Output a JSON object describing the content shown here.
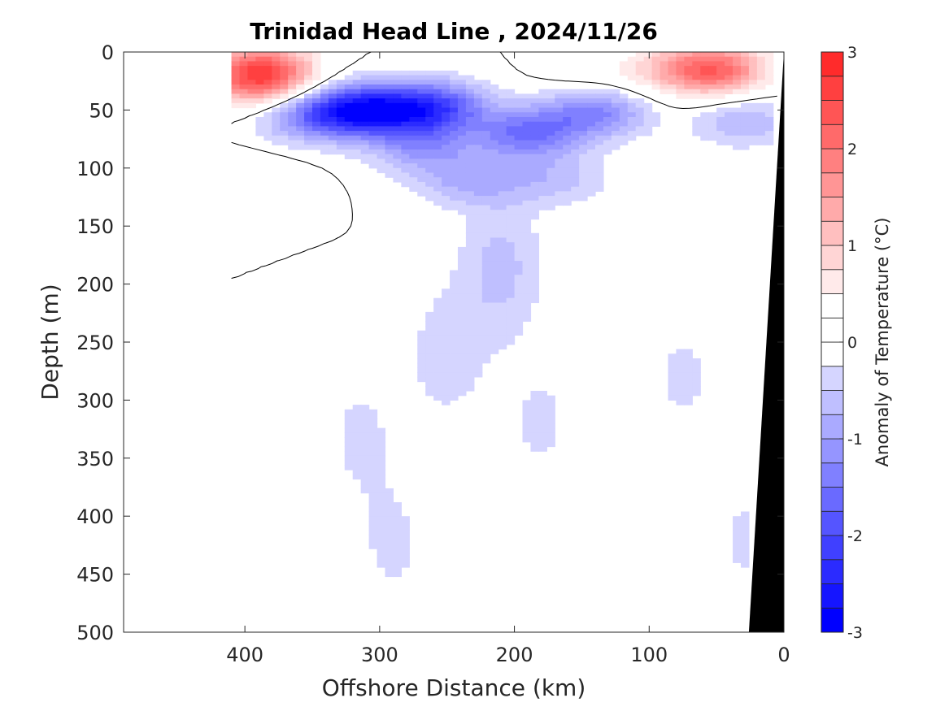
{
  "chart_data": {
    "type": "heatmap",
    "title": "Trinidad Head Line , 2024/11/26",
    "xlabel": "Offshore Distance (km)",
    "ylabel": "Depth (m)",
    "xlim": [
      490,
      0
    ],
    "ylim": [
      500,
      0
    ],
    "x_reversed": true,
    "y_reversed": true,
    "xticks": [
      400,
      300,
      200,
      100,
      0
    ],
    "yticks": [
      0,
      50,
      100,
      150,
      200,
      250,
      300,
      350,
      400,
      450,
      500
    ],
    "grid": false,
    "colorbar": {
      "label": "Anomaly of Temperature (°C)",
      "range": [
        -3,
        3
      ],
      "ticks": [
        3,
        2,
        1,
        0,
        -1,
        -2,
        -3
      ],
      "levels": [
        -3,
        -2.75,
        -2.5,
        -2.25,
        -2,
        -1.75,
        -1.5,
        -1.25,
        -1,
        -0.75,
        -0.5,
        -0.25,
        0,
        0.25,
        0.5,
        0.75,
        1,
        1.25,
        1.5,
        1.75,
        2,
        2.25,
        2.5,
        2.75,
        3
      ],
      "colors": [
        "#0000ff",
        "#1515ff",
        "#2b2bff",
        "#4040ff",
        "#5555ff",
        "#6a6aff",
        "#8080ff",
        "#9595ff",
        "#aaaaff",
        "#bfbfff",
        "#d5d5ff",
        "#eaeaff",
        "#ffffff",
        "#ffffff",
        "#ffeaea",
        "#ffd5d5",
        "#ffbfbf",
        "#ffaaaa",
        "#ff9595",
        "#ff8080",
        "#ff6a6a",
        "#ff5555",
        "#ff4040",
        "#ff2b2b",
        "#ff1515",
        "#ff0000"
      ]
    },
    "data_extent_x": [
      410,
      0
    ],
    "bathymetry_color": "#000000",
    "anomaly_features": [
      {
        "x": 390,
        "y": 25,
        "value": 1.9
      },
      {
        "x": 385,
        "y": 10,
        "value": 1.2
      },
      {
        "x": 395,
        "y": 110,
        "value": 0.3
      },
      {
        "x": 50,
        "y": 15,
        "value": 2.0
      },
      {
        "x": 85,
        "y": 15,
        "value": 0.7
      },
      {
        "x": 140,
        "y": 22,
        "value": 0.3
      },
      {
        "x": 310,
        "y": 50,
        "value": -2.4
      },
      {
        "x": 260,
        "y": 48,
        "value": -2.0
      },
      {
        "x": 350,
        "y": 55,
        "value": -1.3
      },
      {
        "x": 270,
        "y": 80,
        "value": -1.0
      },
      {
        "x": 190,
        "y": 70,
        "value": -1.5
      },
      {
        "x": 140,
        "y": 52,
        "value": -1.3
      },
      {
        "x": 235,
        "y": 110,
        "value": -0.8
      },
      {
        "x": 170,
        "y": 110,
        "value": -0.6
      },
      {
        "x": 30,
        "y": 60,
        "value": -0.7
      },
      {
        "x": 210,
        "y": 185,
        "value": -0.6
      },
      {
        "x": 250,
        "y": 260,
        "value": -0.4
      },
      {
        "x": 180,
        "y": 320,
        "value": -0.3
      },
      {
        "x": 315,
        "y": 330,
        "value": -0.3
      },
      {
        "x": 290,
        "y": 425,
        "value": -0.3
      },
      {
        "x": 75,
        "y": 280,
        "value": -0.3
      },
      {
        "x": 27,
        "y": 420,
        "value": -0.3
      }
    ],
    "contour_level": 0
  }
}
